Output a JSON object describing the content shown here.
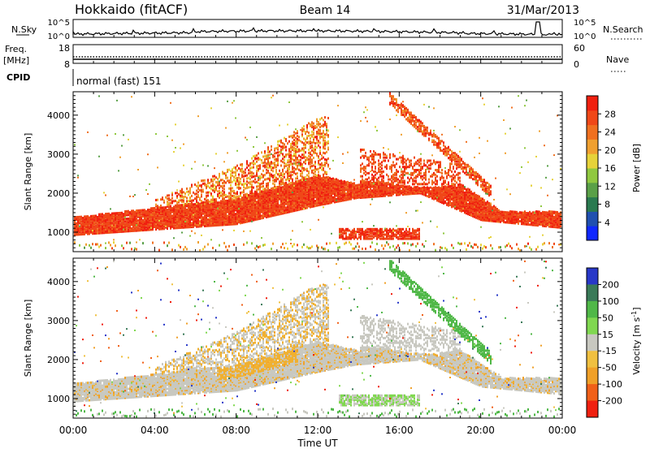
{
  "header": {
    "station": "Hokkaido (fitACF)",
    "beam": "Beam 14",
    "date": "31/Mar/2013"
  },
  "chart_data": [
    {
      "type": "line",
      "name": "N.Sky / N.Search strip",
      "left_label": "N.Sky",
      "right_label": "N.Search",
      "left_ticks": [
        "10^5",
        "10^0"
      ],
      "right_ticks": [
        "10^5",
        "10^0"
      ]
    },
    {
      "type": "line",
      "name": "Freq / Nave strip",
      "left_label_1": "Freq.",
      "left_label_2": "[MHz]",
      "right_label": "Nave",
      "left_ticks": [
        "18",
        "8"
      ],
      "right_ticks": [
        "60",
        "0"
      ]
    },
    {
      "type": "table",
      "name": "CPID strip",
      "label": "CPID",
      "value": "normal (fast) 151"
    },
    {
      "type": "heatmap",
      "name": "power",
      "ylabel": "Slant Range [km]",
      "yticks": [
        1000,
        2000,
        3000,
        4000
      ],
      "ylim": [
        500,
        4600
      ],
      "colorbar_label": "Power [dB]",
      "colorbar_ticks": [
        "4",
        "8",
        "12",
        "16",
        "20",
        "24",
        "28"
      ],
      "colorbar_colors": [
        "#1028ff",
        "#2050b0",
        "#2a7a50",
        "#5aa048",
        "#90c840",
        "#e6d23a",
        "#f0a030",
        "#f07020",
        "#f04818",
        "#f02010"
      ]
    },
    {
      "type": "heatmap",
      "name": "velocity",
      "ylabel": "Slant Range [km]",
      "yticks": [
        1000,
        2000,
        3000,
        4000
      ],
      "ylim": [
        500,
        4600
      ],
      "colorbar_label": "Velocity [m s",
      "colorbar_label_sup": "-1",
      "colorbar_label_end": "]",
      "colorbar_ticks": [
        "200",
        "100",
        "50",
        "15",
        "-15",
        "-50",
        "-100",
        "-200"
      ],
      "colorbar_colors": [
        "#2838c8",
        "#3a7a58",
        "#50b848",
        "#80d850",
        "#c8c8c0",
        "#f0c040",
        "#f0a028",
        "#f06018",
        "#f02010"
      ]
    }
  ],
  "time_axis": {
    "xlabel": "Time UT",
    "xticks": [
      "00:00",
      "04:00",
      "08:00",
      "12:00",
      "16:00",
      "20:00",
      "00:00"
    ]
  }
}
